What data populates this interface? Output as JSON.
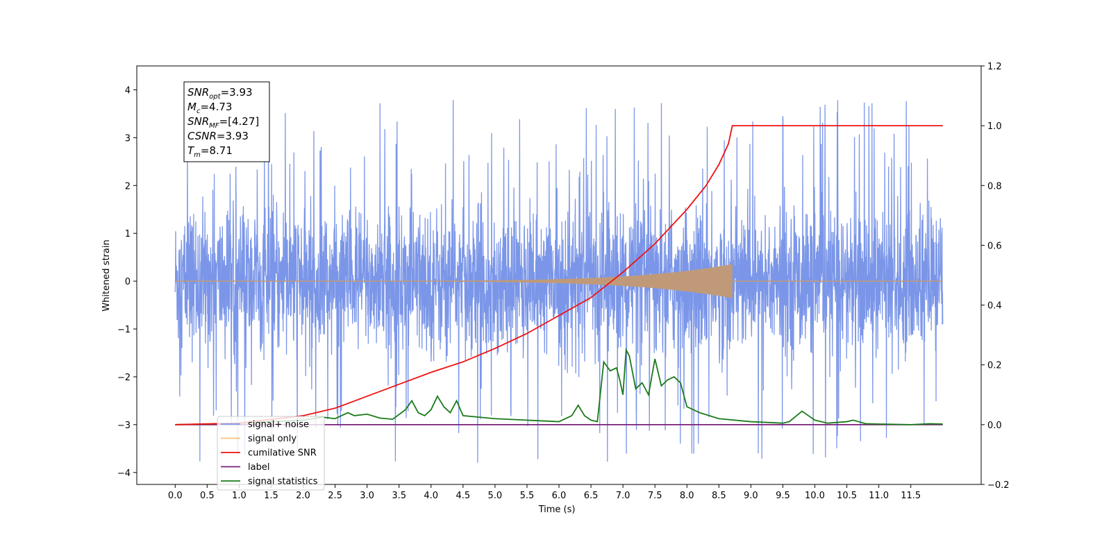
{
  "chart_data": {
    "type": "line",
    "xlabel": "Time (s)",
    "ylabel": "Whitened strain",
    "xlim": [
      -0.6,
      12.6
    ],
    "ylim": [
      -4.25,
      4.5
    ],
    "y2lim": [
      -0.2,
      1.2
    ],
    "grid": false,
    "legend_placement": "lower-left",
    "x_ticks": [
      "0.0",
      "0.5",
      "1.0",
      "1.5",
      "2.0",
      "2.5",
      "3.0",
      "3.5",
      "4.0",
      "4.5",
      "5.0",
      "5.5",
      "6.0",
      "6.5",
      "7.0",
      "7.5",
      "8.0",
      "8.5",
      "9.0",
      "9.5",
      "10.0",
      "10.5",
      "11.0",
      "11.5"
    ],
    "y_ticks": [
      -4,
      -3,
      -2,
      -1,
      0,
      1,
      2,
      3,
      4
    ],
    "y2_ticks": [
      "−0.2",
      "0.0",
      "0.2",
      "0.4",
      "0.6",
      "0.8",
      "1.0",
      "1.2"
    ],
    "annotation": [
      {
        "sym": "SNR",
        "sub": "opt",
        "text": "=3.93"
      },
      {
        "sym": "M",
        "sub": "c",
        "text": "=4.73"
      },
      {
        "sym": "SNR",
        "sub": "MF",
        "text": "=[4.27]"
      },
      {
        "sym": "CSNR",
        "sub": "",
        "text": "=3.93"
      },
      {
        "sym": "T",
        "sub": "m",
        "text": "=8.71"
      }
    ],
    "series": [
      {
        "name": "signal+ noise",
        "color": "#7b96e8",
        "axis": "left",
        "x_range": [
          0.0,
          12.0
        ],
        "approx_std": 0.75,
        "peak_min": -3.85,
        "peak_max": 4.12
      },
      {
        "name": "signal only",
        "color": "#f5c376",
        "axis": "left",
        "x_range": [
          0.0,
          12.0
        ],
        "chirp_end": 8.71,
        "amplitude_at_end": 0.35
      },
      {
        "name": "cumilative SNR",
        "color": "#ee1111",
        "axis": "right",
        "x": [
          0.0,
          1.0,
          2.0,
          2.5,
          3.0,
          3.5,
          4.0,
          4.5,
          5.0,
          5.5,
          6.0,
          6.5,
          7.0,
          7.5,
          8.0,
          8.3,
          8.5,
          8.65,
          8.71,
          12.0
        ],
        "values": [
          0.0,
          0.005,
          0.03,
          0.055,
          0.095,
          0.135,
          0.175,
          0.21,
          0.255,
          0.305,
          0.365,
          0.425,
          0.51,
          0.605,
          0.72,
          0.8,
          0.87,
          0.94,
          1.0,
          1.0
        ]
      },
      {
        "name": "label",
        "color": "#7a1f7a",
        "axis": "right",
        "x": [
          0.0,
          12.0
        ],
        "values": [
          0.0,
          0.0
        ]
      },
      {
        "name": "signal statistics",
        "color": "#1a7a1a",
        "axis": "right",
        "x": [
          0.0,
          0.5,
          1.0,
          1.5,
          2.0,
          2.3,
          2.5,
          2.7,
          2.8,
          3.0,
          3.2,
          3.4,
          3.6,
          3.7,
          3.8,
          3.9,
          4.0,
          4.1,
          4.2,
          4.3,
          4.4,
          4.5,
          5.0,
          5.5,
          6.0,
          6.2,
          6.3,
          6.4,
          6.5,
          6.6,
          6.7,
          6.8,
          6.9,
          6.95,
          7.0,
          7.05,
          7.1,
          7.2,
          7.3,
          7.4,
          7.5,
          7.6,
          7.7,
          7.8,
          7.9,
          8.0,
          8.2,
          8.5,
          9.0,
          9.5,
          9.6,
          9.8,
          9.9,
          10.0,
          10.2,
          10.5,
          10.6,
          10.8,
          11.0,
          11.5,
          11.8,
          12.0
        ],
        "values": [
          0.0,
          0.002,
          0.005,
          0.01,
          0.015,
          0.025,
          0.02,
          0.04,
          0.03,
          0.035,
          0.022,
          0.018,
          0.05,
          0.08,
          0.04,
          0.03,
          0.05,
          0.095,
          0.06,
          0.04,
          0.08,
          0.03,
          0.02,
          0.015,
          0.01,
          0.03,
          0.065,
          0.03,
          0.015,
          0.01,
          0.21,
          0.18,
          0.19,
          0.15,
          0.1,
          0.25,
          0.23,
          0.12,
          0.14,
          0.1,
          0.22,
          0.13,
          0.15,
          0.16,
          0.14,
          0.06,
          0.04,
          0.02,
          0.01,
          0.005,
          0.01,
          0.045,
          0.03,
          0.015,
          0.005,
          0.01,
          0.015,
          0.003,
          0.002,
          0.0,
          0.003,
          0.002
        ]
      }
    ]
  }
}
